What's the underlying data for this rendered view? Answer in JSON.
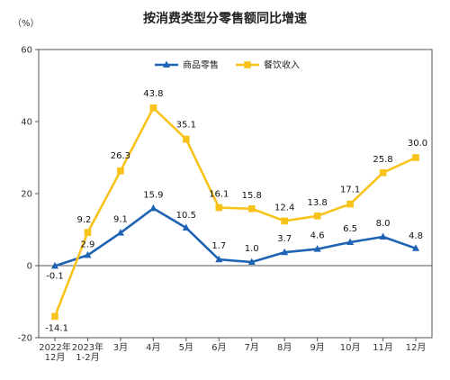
{
  "title": "按消费类型分零售额同比增速",
  "unit": "（%）",
  "chart_data": {
    "type": "line",
    "categories": [
      "2022年12月",
      "2023年1-2月",
      "3月",
      "4月",
      "5月",
      "6月",
      "7月",
      "8月",
      "9月",
      "10月",
      "11月",
      "12月"
    ],
    "x_tick_labels": [
      [
        "2022年",
        "12月"
      ],
      [
        "2023年",
        "1-2月"
      ],
      [
        "3月"
      ],
      [
        "4月"
      ],
      [
        "5月"
      ],
      [
        "6月"
      ],
      [
        "7月"
      ],
      [
        "8月"
      ],
      [
        "9月"
      ],
      [
        "10月"
      ],
      [
        "11月"
      ],
      [
        "12月"
      ]
    ],
    "series": [
      {
        "name": "商品零售",
        "color": "#1f63b4",
        "marker": "triangle",
        "values": [
          -0.1,
          2.9,
          9.1,
          15.9,
          10.5,
          1.7,
          1.0,
          3.7,
          4.6,
          6.5,
          8.0,
          4.8
        ],
        "labels": [
          "-0.1",
          "2.9",
          "9.1",
          "15.9",
          "10.5",
          "1.7",
          "1.0",
          "3.7",
          "4.6",
          "6.5",
          "8.0",
          "4.8"
        ]
      },
      {
        "name": "餐饮收入",
        "color": "#f7c31a",
        "marker": "square",
        "values": [
          -14.1,
          9.2,
          26.3,
          43.8,
          35.1,
          16.1,
          15.8,
          12.4,
          13.8,
          17.1,
          25.8,
          30.0
        ],
        "labels": [
          "-14.1",
          "9.2",
          "26.3",
          "43.8",
          "35.1",
          "16.1",
          "15.8",
          "12.4",
          "13.8",
          "17.1",
          "25.8",
          "30.0"
        ]
      }
    ],
    "y_ticks": [
      -20,
      0,
      20,
      40,
      60
    ],
    "ylim": [
      -20,
      60
    ],
    "grid": false,
    "legend_position": "top-center"
  }
}
